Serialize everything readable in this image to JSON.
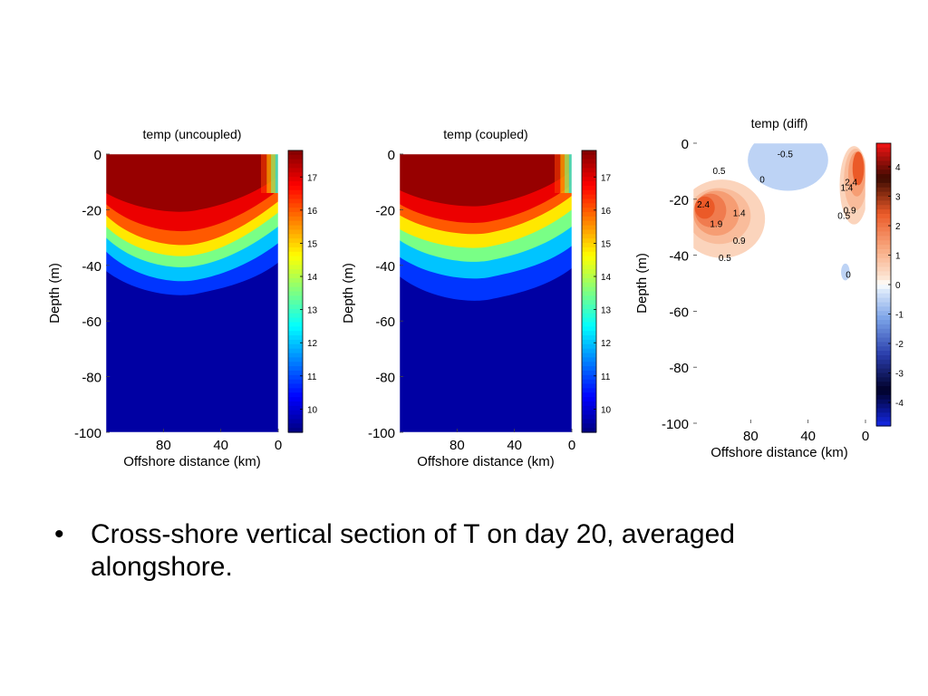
{
  "bullet": {
    "marker": "•",
    "text": "Cross-shore vertical section of T on day 20, averaged alongshore."
  },
  "chart_data": [
    {
      "type": "heatmap",
      "title": "temp (uncoupled)",
      "xlabel": "Offshore distance (km)",
      "ylabel": "Depth (m)",
      "x_ticks": [
        80,
        40,
        0
      ],
      "y_ticks": [
        0,
        -20,
        -40,
        -60,
        -80,
        -100
      ],
      "xlim": [
        120,
        0
      ],
      "ylim": [
        -100,
        0
      ],
      "colorbar": {
        "ticks": [
          10,
          11,
          12,
          13,
          14,
          15,
          16,
          17
        ],
        "range": [
          9.3,
          17.8
        ],
        "colormap": "jet"
      },
      "field": "warm layer ~18 °C above ~20 m deepening to ~40 m near 40–70 km offshore, thermocline to ~50 m, cold ~9.5 °C below",
      "bands": [
        {
          "depth_offshore": -14,
          "depth_mid": -20,
          "depth_near": -8,
          "value": 17.6
        },
        {
          "depth_offshore": -18,
          "depth_mid": -27,
          "depth_near": -13,
          "value": 16.9
        },
        {
          "depth_offshore": -22,
          "depth_mid": -32,
          "depth_near": -17,
          "value": 16.0
        },
        {
          "depth_offshore": -26,
          "depth_mid": -36,
          "depth_near": -21,
          "value": 14.8
        },
        {
          "depth_offshore": -30,
          "depth_mid": -40,
          "depth_near": -26,
          "value": 13.5
        },
        {
          "depth_offshore": -35,
          "depth_mid": -45,
          "depth_near": -32,
          "value": 12.0
        },
        {
          "depth_offshore": -42,
          "depth_mid": -50,
          "depth_near": -39,
          "value": 10.8
        }
      ]
    },
    {
      "type": "heatmap",
      "title": "temp (coupled)",
      "xlabel": "Offshore distance (km)",
      "ylabel": "Depth (m)",
      "x_ticks": [
        80,
        40,
        0
      ],
      "y_ticks": [
        0,
        -20,
        -40,
        -60,
        -80,
        -100
      ],
      "xlim": [
        120,
        0
      ],
      "ylim": [
        -100,
        0
      ],
      "colorbar": {
        "ticks": [
          10,
          11,
          12,
          13,
          14,
          15,
          16,
          17
        ],
        "range": [
          9.3,
          17.8
        ],
        "colormap": "jet"
      },
      "field": "warm layer above ~20 m, shallower toward shore, thermocline ~25–50 m, cold ~9.5 °C below",
      "bands": [
        {
          "depth_offshore": -13,
          "depth_mid": -18,
          "depth_near": -6,
          "value": 17.6
        },
        {
          "depth_offshore": -18,
          "depth_mid": -24,
          "depth_near": -11,
          "value": 16.9
        },
        {
          "depth_offshore": -22,
          "depth_mid": -28,
          "depth_near": -15,
          "value": 16.0
        },
        {
          "depth_offshore": -27,
          "depth_mid": -33,
          "depth_near": -20,
          "value": 14.8
        },
        {
          "depth_offshore": -31,
          "depth_mid": -38,
          "depth_near": -26,
          "value": 13.5
        },
        {
          "depth_offshore": -37,
          "depth_mid": -44,
          "depth_near": -33,
          "value": 12.0
        },
        {
          "depth_offshore": -44,
          "depth_mid": -52,
          "depth_near": -41,
          "value": 10.8
        }
      ]
    },
    {
      "type": "heatmap",
      "title": "temp (diff)",
      "xlabel": "Offshore distance (km)",
      "ylabel": "Depth (m)",
      "x_ticks": [
        80,
        40,
        0
      ],
      "y_ticks": [
        0,
        -20,
        -40,
        -60,
        -80,
        -100
      ],
      "xlim": [
        120,
        0
      ],
      "ylim": [
        -100,
        0
      ],
      "colorbar": {
        "ticks": [
          4,
          3,
          2,
          1,
          0,
          -1,
          -2,
          -3,
          -4
        ],
        "range": [
          -4.8,
          4.8
        ],
        "colormap": "diverging"
      },
      "field": "difference field: positive ~2.4 °C patch near 90–120 km at ~25 m, positive up to ~2.4 near shore at ~15 m, negative ~-0.5 near 40–80 km in upper 15 m, small negative spot near 10 km at ~45 m",
      "regions": [
        {
          "kind": "ellipse",
          "cx": 100,
          "cy": -27,
          "rx": 30,
          "ry": 14,
          "value": 0.5
        },
        {
          "kind": "ellipse",
          "cx": 102,
          "cy": -26,
          "rx": 22,
          "ry": 10,
          "value": 0.9
        },
        {
          "kind": "ellipse",
          "cx": 104,
          "cy": -25,
          "rx": 16,
          "ry": 8,
          "value": 1.4
        },
        {
          "kind": "ellipse",
          "cx": 108,
          "cy": -24,
          "rx": 11,
          "ry": 6,
          "value": 1.9
        },
        {
          "kind": "ellipse",
          "cx": 112,
          "cy": -23,
          "rx": 7,
          "ry": 4,
          "value": 2.4
        },
        {
          "kind": "ellipse",
          "cx": 8,
          "cy": -15,
          "rx": 10,
          "ry": 14,
          "value": 0.5
        },
        {
          "kind": "ellipse",
          "cx": 7,
          "cy": -13,
          "rx": 8,
          "ry": 11,
          "value": 0.9
        },
        {
          "kind": "ellipse",
          "cx": 6,
          "cy": -11,
          "rx": 6,
          "ry": 8,
          "value": 1.4
        },
        {
          "kind": "ellipse",
          "cx": 5,
          "cy": -9,
          "rx": 4,
          "ry": 6,
          "value": 2.4
        },
        {
          "kind": "ellipse",
          "cx": 54,
          "cy": -6,
          "rx": 28,
          "ry": 11,
          "value": -0.5
        },
        {
          "kind": "ellipse",
          "cx": 14,
          "cy": -46,
          "rx": 3,
          "ry": 3,
          "value": -0.5
        }
      ],
      "contour_labels": [
        {
          "text": "0.5",
          "x": 102,
          "y": -11
        },
        {
          "text": "0",
          "x": 72,
          "y": -14
        },
        {
          "text": "-0.5",
          "x": 56,
          "y": -5
        },
        {
          "text": "2.4",
          "x": 113,
          "y": -23
        },
        {
          "text": "1.9",
          "x": 104,
          "y": -30
        },
        {
          "text": "1.4",
          "x": 88,
          "y": -26
        },
        {
          "text": "0.9",
          "x": 88,
          "y": -36
        },
        {
          "text": "0.5",
          "x": 98,
          "y": -42
        },
        {
          "text": "2.4",
          "x": 10,
          "y": -15
        },
        {
          "text": "1.4",
          "x": 13,
          "y": -17
        },
        {
          "text": "0.9",
          "x": 11,
          "y": -25
        },
        {
          "text": "0.5",
          "x": 15,
          "y": -27
        },
        {
          "text": "0",
          "x": 12,
          "y": -48
        }
      ]
    }
  ]
}
